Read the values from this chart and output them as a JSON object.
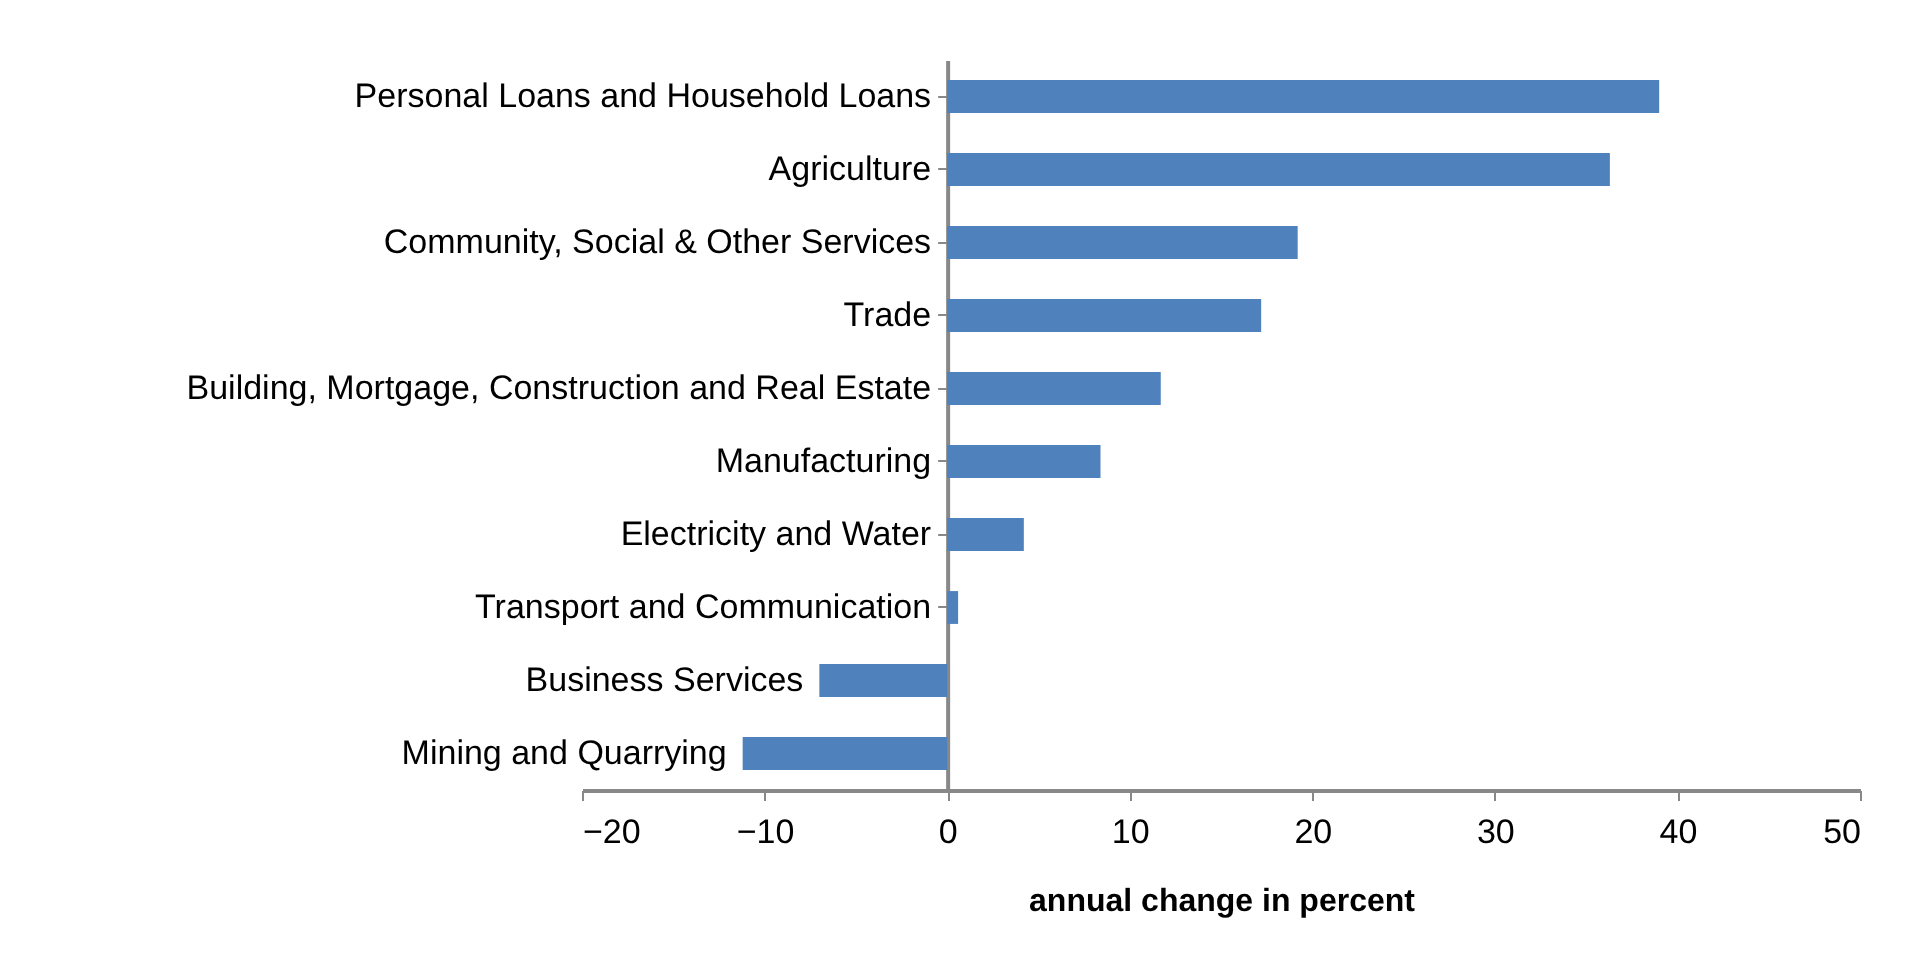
{
  "chart_data": {
    "type": "bar",
    "orientation": "horizontal",
    "xlabel": "annual change in percent",
    "categories": [
      "Personal Loans and Household Loans",
      "Agriculture",
      "Community, Social & Other Services",
      "Trade",
      "Building, Mortgage, Construction and Real Estate",
      "Manufacturing",
      "Electricity and Water",
      "Transport and Communication",
      "Business Services",
      "Mining and Quarrying"
    ],
    "values": [
      39.0,
      36.3,
      19.2,
      17.2,
      11.7,
      8.4,
      4.2,
      0.6,
      -7.0,
      -11.2
    ],
    "color": "#4f81bd",
    "xlim": [
      -20,
      50
    ],
    "xticks": [
      -20,
      -10,
      0,
      10,
      20,
      30,
      40,
      50
    ],
    "grid": false
  }
}
